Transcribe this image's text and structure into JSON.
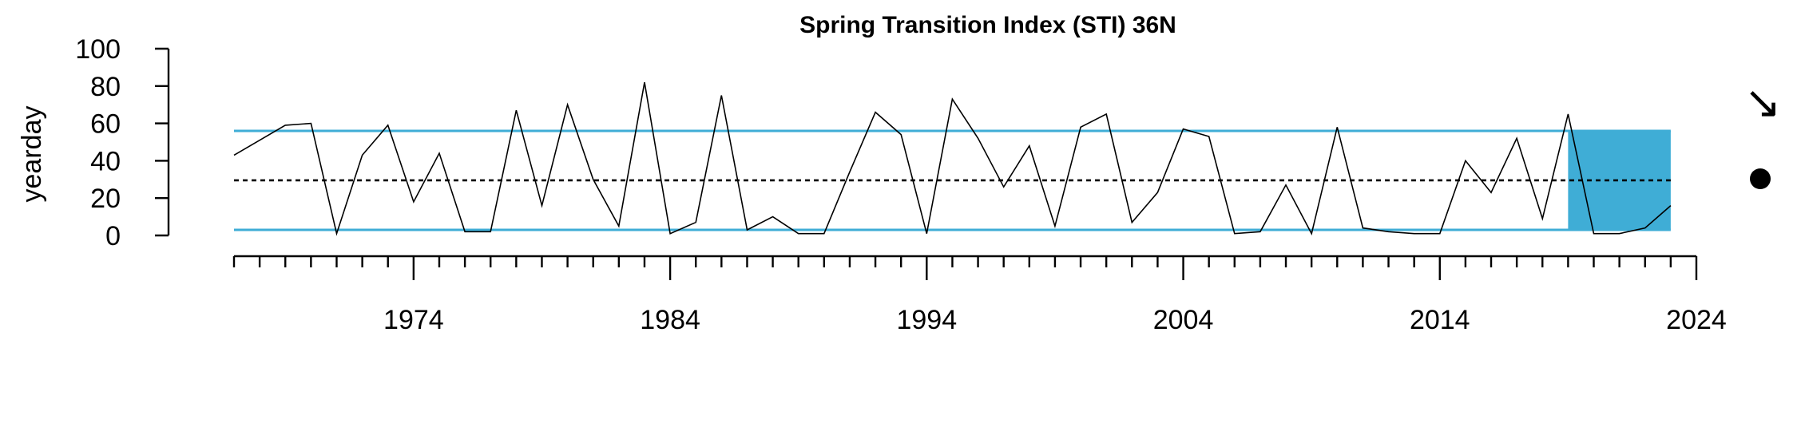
{
  "chart_data": {
    "type": "line",
    "title": "Spring Transition Index (STI) 36N",
    "xlabel": "",
    "ylabel": "yearday",
    "xlim": [
      1967,
      2024
    ],
    "ylim": [
      0,
      100
    ],
    "y_ticks": [
      0,
      20,
      40,
      60,
      80,
      100
    ],
    "x_tick_labels": [
      "1974",
      "1984",
      "1994",
      "2004",
      "2014",
      "2024"
    ],
    "x_minor_tick_years": [
      1967,
      1968,
      1969,
      1970,
      1971,
      1972,
      1973,
      1974,
      1975,
      1976,
      1977,
      1978,
      1979,
      1980,
      1981,
      1982,
      1983,
      1984,
      1985,
      1986,
      1987,
      1988,
      1989,
      1990,
      1991,
      1992,
      1993,
      1994,
      1995,
      1996,
      1997,
      1998,
      1999,
      2000,
      2001,
      2002,
      2003,
      2004,
      2005,
      2006,
      2007,
      2008,
      2009,
      2010,
      2011,
      2012,
      2013,
      2014,
      2015,
      2016,
      2017,
      2018,
      2019,
      2020,
      2021,
      2022,
      2023,
      2024
    ],
    "mean": 29.5,
    "upper_sd": 56,
    "lower_sd": 3,
    "highlight_years": [
      2019,
      2023
    ],
    "series": [
      {
        "x": [
          1967,
          1968,
          1969,
          1970,
          1971,
          1972,
          1973,
          1974,
          1975,
          1976,
          1977,
          1978,
          1979,
          1980,
          1981,
          1982,
          1983,
          1984,
          1985,
          1986,
          1987,
          1988,
          1989,
          1990,
          1991,
          1992,
          1993,
          1994,
          1995,
          1996,
          1997,
          1998,
          1999,
          2000,
          2001,
          2002,
          2003,
          2004,
          2005,
          2006,
          2007,
          2008,
          2009,
          2010,
          2011,
          2012,
          2013,
          2014,
          2015,
          2016,
          2017,
          2018,
          2019,
          2020,
          2021,
          2022,
          2023
        ],
        "values": [
          43,
          51,
          59,
          60,
          1,
          43,
          59,
          18,
          44,
          2,
          2,
          67,
          16,
          70,
          30,
          5,
          82,
          1,
          7,
          75,
          3,
          10,
          1,
          1,
          34,
          66,
          54,
          1,
          73,
          52,
          26,
          48,
          5,
          58,
          65,
          7,
          23,
          57,
          53,
          1,
          2,
          27,
          1,
          58,
          4,
          2,
          1,
          1,
          40,
          23,
          52,
          9,
          65,
          1,
          1,
          4,
          16
        ]
      }
    ],
    "trend_symbol": "↘",
    "status_symbol": "●",
    "colors": {
      "line": "#000000",
      "band": "#3fadd6",
      "highlight": "#3fadd6",
      "mean": "#000000"
    }
  }
}
